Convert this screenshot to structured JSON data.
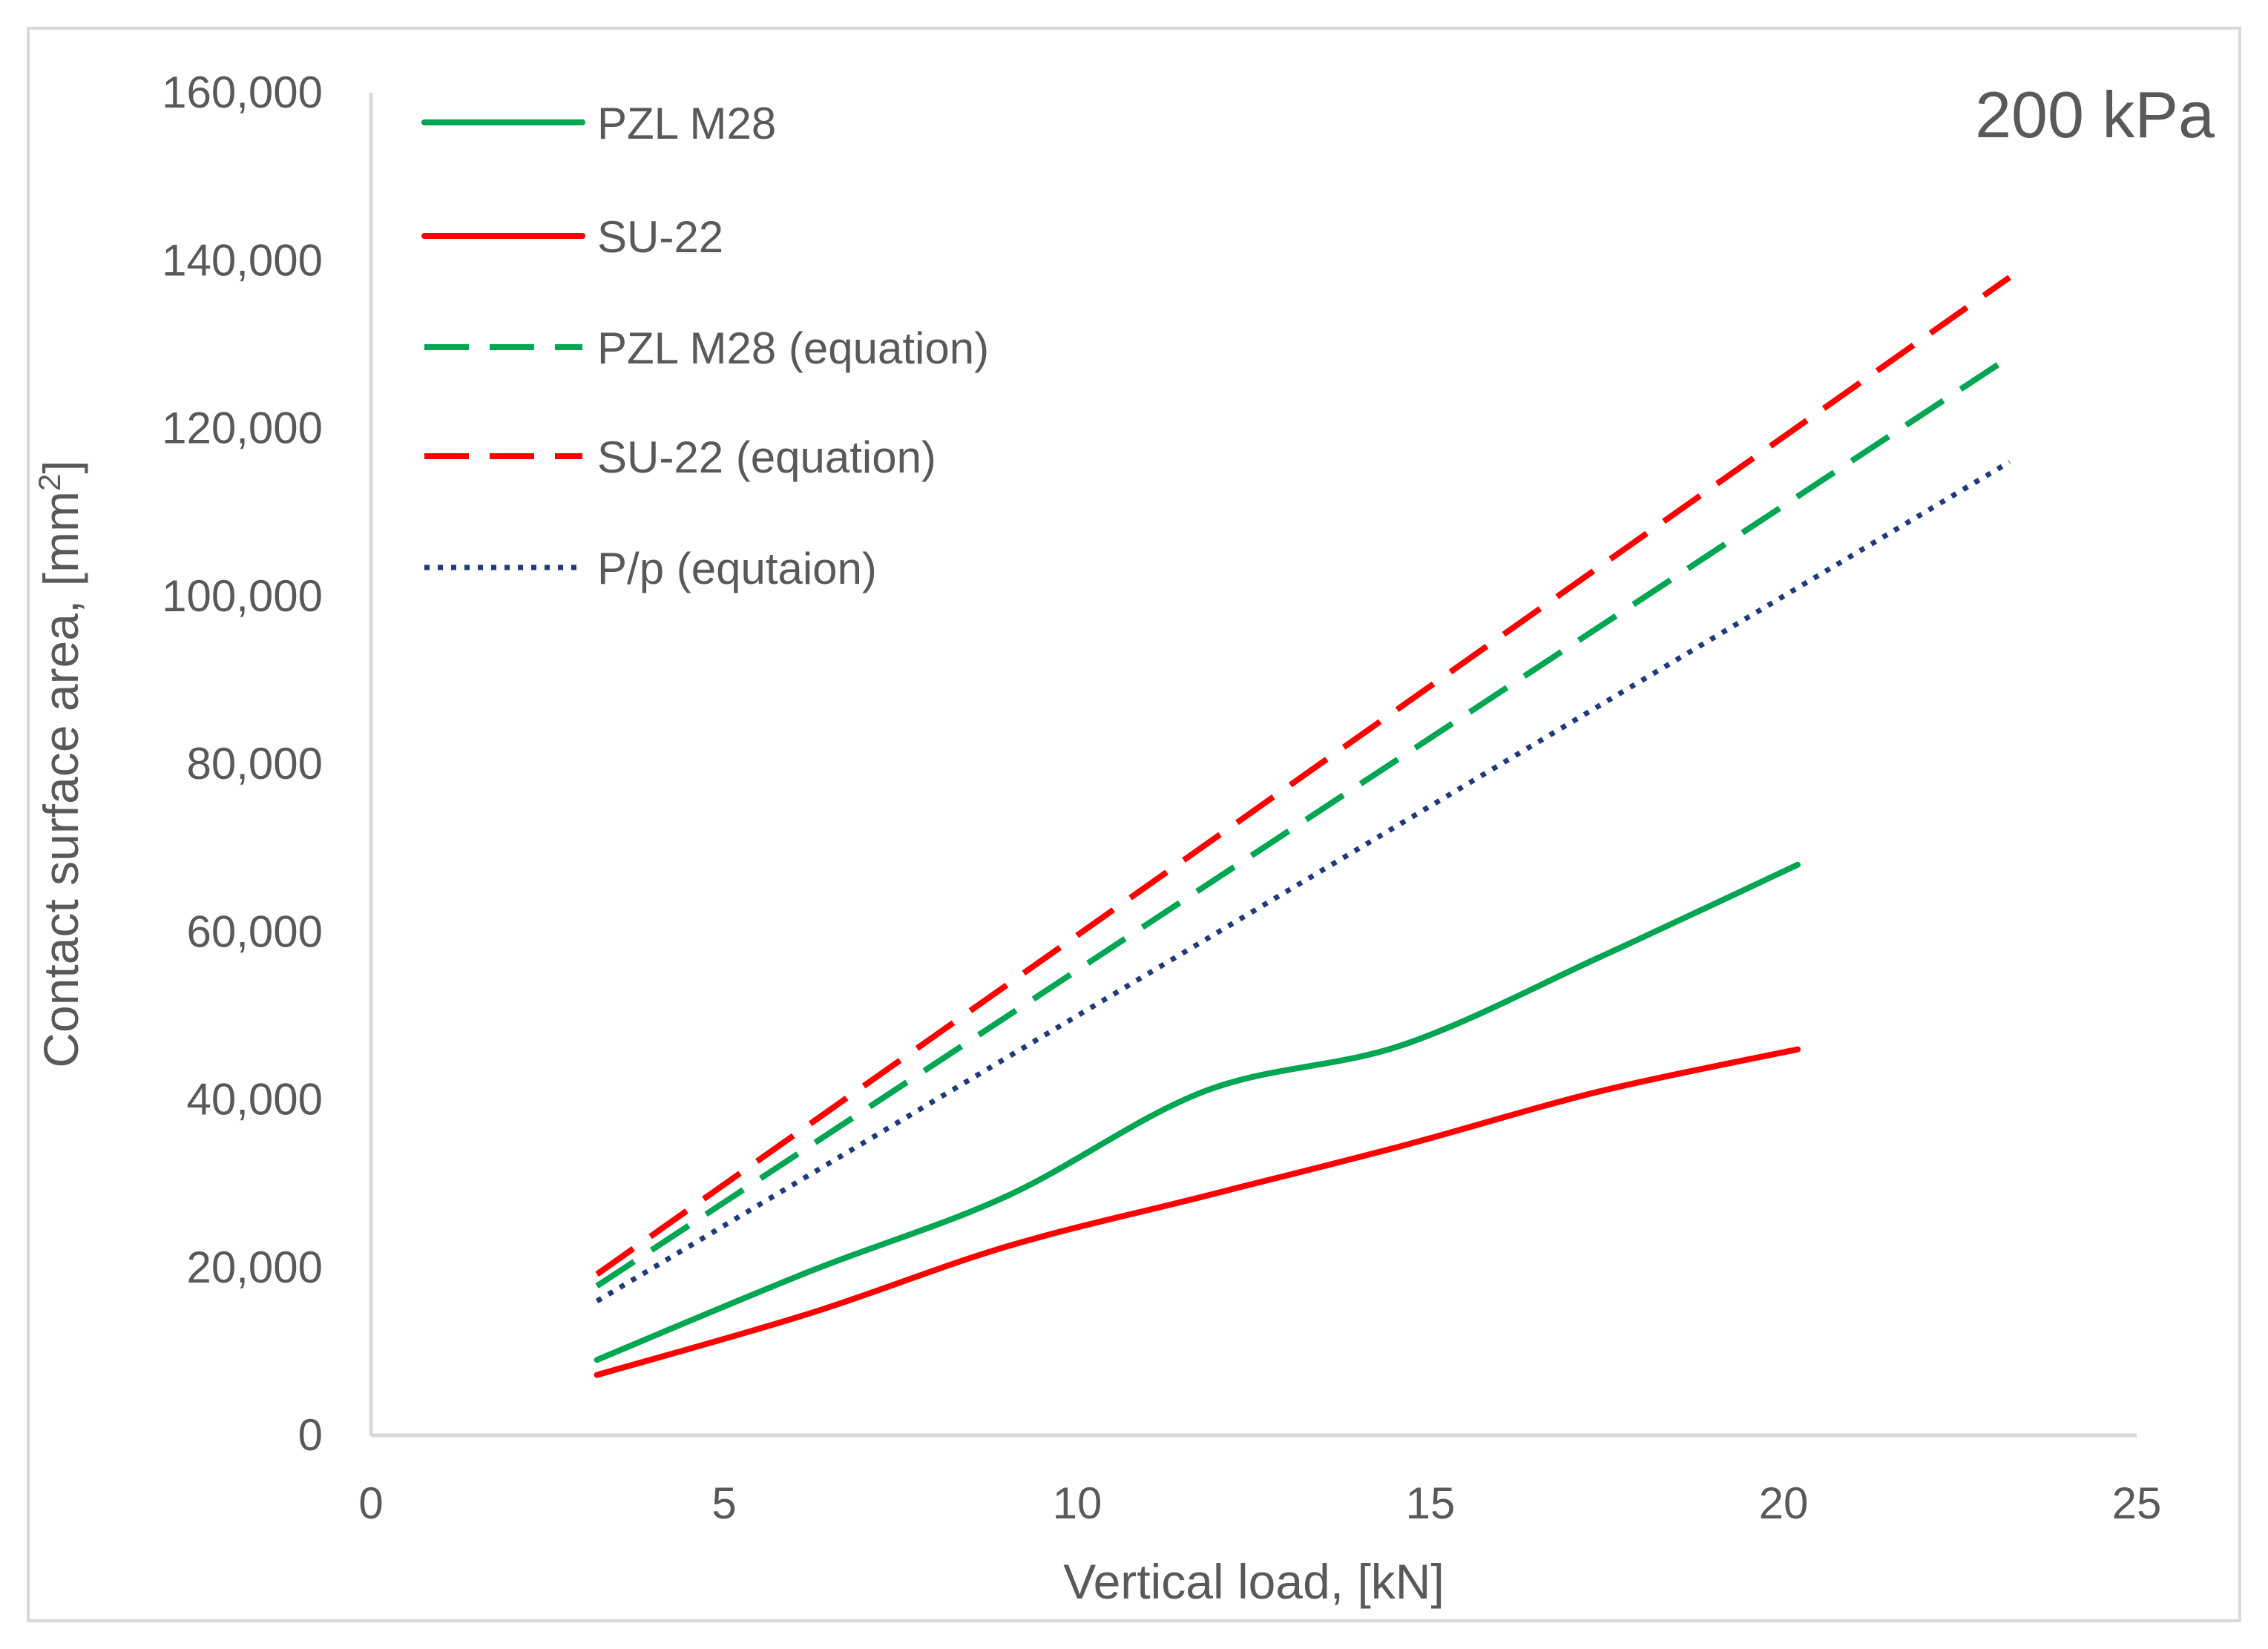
{
  "chart_data": {
    "type": "line",
    "title": "",
    "annotation": "200 kPa",
    "xlabel": "Vertical load, [kN]",
    "ylabel": "Contact surface area, [mm",
    "ylabel_sup": "2",
    "ylabel_end": "]",
    "xlim": [
      0,
      25
    ],
    "ylim": [
      0,
      160000
    ],
    "xticks": [
      0,
      5,
      10,
      15,
      20,
      25
    ],
    "yticks": [
      0,
      20000,
      40000,
      60000,
      80000,
      100000,
      120000,
      140000,
      160000
    ],
    "xtick_labels": [
      "0",
      "5",
      "10",
      "15",
      "20",
      "25"
    ],
    "ytick_labels": [
      "0",
      "20,000",
      "40,000",
      "60,000",
      "80,000",
      "100,000",
      "120,000",
      "140,000",
      "160,000"
    ],
    "grid": false,
    "legend_position": "top-left",
    "series": [
      {
        "name": "PZL M28",
        "color": "#00a651",
        "dash": "solid",
        "x": [
          3.2,
          6.2,
          9.0,
          11.8,
          14.6,
          17.4,
          20.2
        ],
        "y": [
          9000,
          19500,
          28500,
          41000,
          46500,
          57000,
          68000
        ]
      },
      {
        "name": "SU-22",
        "color": "#ff0000",
        "dash": "solid",
        "x": [
          3.2,
          6.2,
          9.0,
          11.8,
          14.6,
          17.4,
          20.2
        ],
        "y": [
          7200,
          14500,
          22500,
          28500,
          34500,
          41000,
          46000
        ]
      },
      {
        "name": "PZL M28 (equation)",
        "color": "#00a651",
        "dash": "dashed",
        "x": [
          3.2,
          23.2
        ],
        "y": [
          17800,
          128500
        ]
      },
      {
        "name": "SU-22 (equation)",
        "color": "#ff0000",
        "dash": "dashed",
        "x": [
          3.2,
          23.2
        ],
        "y": [
          19200,
          138000
        ]
      },
      {
        "name": "P/p (equtaion)",
        "color": "#1f3a7a",
        "dash": "dotted",
        "x": [
          3.2,
          23.2
        ],
        "y": [
          16000,
          116000
        ]
      }
    ]
  }
}
